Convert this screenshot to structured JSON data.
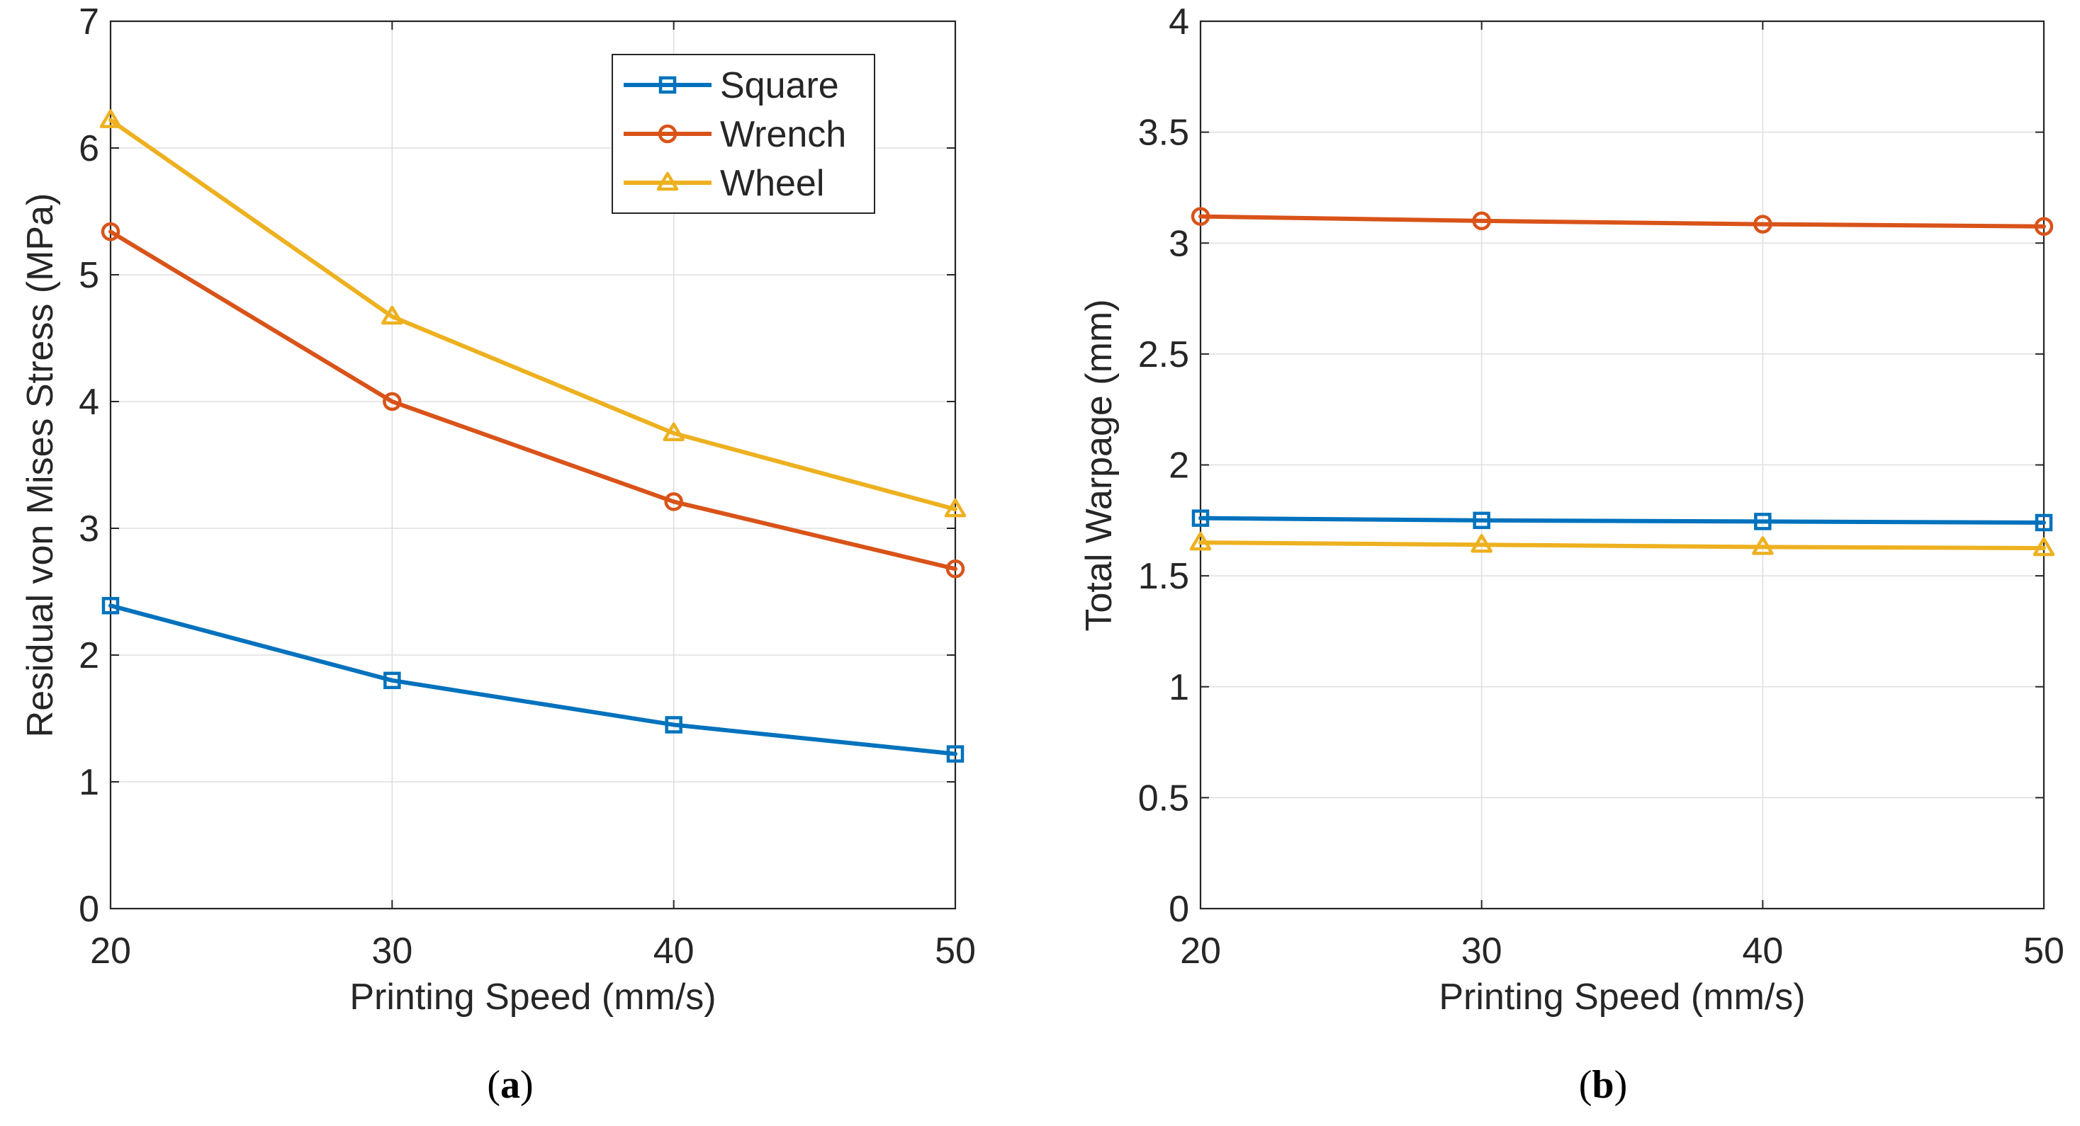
{
  "chart_data": [
    {
      "type": "line",
      "panel_label": "(a)",
      "panel_letter": "a",
      "xlabel": "Printing Speed (mm/s)",
      "ylabel": "Residual von Mises Stress (MPa)",
      "x": [
        20,
        30,
        40,
        50
      ],
      "xlim": [
        20,
        50
      ],
      "ylim": [
        0,
        7
      ],
      "xticks": [
        20,
        30,
        40,
        50
      ],
      "yticks": [
        0,
        1,
        2,
        3,
        4,
        5,
        6,
        7
      ],
      "grid": true,
      "legend_position": "top-right",
      "series": [
        {
          "name": "Square",
          "color": "#0072BD",
          "marker": "square",
          "values": [
            2.39,
            1.8,
            1.45,
            1.22
          ]
        },
        {
          "name": "Wrench",
          "color": "#D95319",
          "marker": "circle",
          "values": [
            5.34,
            4.0,
            3.21,
            2.68
          ]
        },
        {
          "name": "Wheel",
          "color": "#EDB120",
          "marker": "triangle",
          "values": [
            6.22,
            4.67,
            3.75,
            3.15
          ]
        }
      ]
    },
    {
      "type": "line",
      "panel_label": "(b)",
      "panel_letter": "b",
      "xlabel": "Printing Speed (mm/s)",
      "ylabel": "Total Warpage (mm)",
      "x": [
        20,
        30,
        40,
        50
      ],
      "xlim": [
        20,
        50
      ],
      "ylim": [
        0,
        4
      ],
      "xticks": [
        20,
        30,
        40,
        50
      ],
      "yticks": [
        0,
        0.5,
        1,
        1.5,
        2,
        2.5,
        3,
        3.5,
        4
      ],
      "grid": true,
      "series": [
        {
          "name": "Square",
          "color": "#0072BD",
          "marker": "square",
          "values": [
            1.76,
            1.75,
            1.745,
            1.74
          ]
        },
        {
          "name": "Wrench",
          "color": "#D95319",
          "marker": "circle",
          "values": [
            3.12,
            3.1,
            3.085,
            3.075
          ]
        },
        {
          "name": "Wheel",
          "color": "#EDB120",
          "marker": "triangle",
          "values": [
            1.65,
            1.64,
            1.63,
            1.625
          ]
        }
      ]
    }
  ]
}
